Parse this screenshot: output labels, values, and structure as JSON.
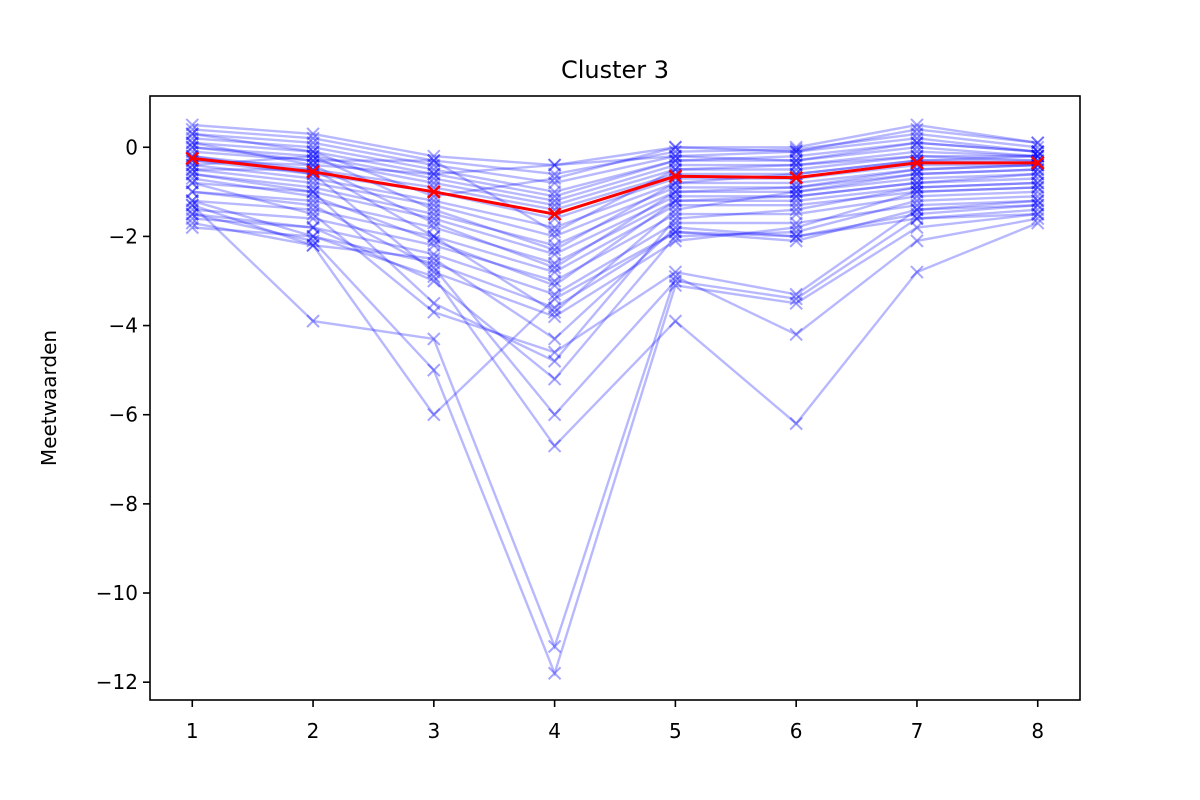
{
  "chart_data": {
    "type": "line",
    "title": "Cluster 3",
    "xlabel": "",
    "ylabel": "Meetwaarden",
    "x": [
      1,
      2,
      3,
      4,
      5,
      6,
      7,
      8
    ],
    "xticks": [
      "1",
      "2",
      "3",
      "4",
      "5",
      "6",
      "7",
      "8"
    ],
    "yticks": [
      "0",
      "−2",
      "−4",
      "−6",
      "−8",
      "−10",
      "−12"
    ],
    "ytick_values": [
      0,
      -2,
      -4,
      -6,
      -8,
      -10,
      -12
    ],
    "xlim": [
      0.65,
      8.35
    ],
    "ylim": [
      -12.4,
      1.15
    ],
    "grid": false,
    "colors": {
      "members": "#0000ff",
      "mean": "#ff0000"
    },
    "mean_series": {
      "name": "mean",
      "values": [
        -0.25,
        -0.55,
        -1.0,
        -1.5,
        -0.65,
        -0.68,
        -0.35,
        -0.35
      ]
    },
    "member_series": [
      [
        0.5,
        0.3,
        -0.2,
        -0.4,
        0.0,
        0.0,
        0.5,
        0.1
      ],
      [
        0.4,
        0.2,
        -0.3,
        -0.6,
        -0.1,
        -0.05,
        0.3,
        0.0
      ],
      [
        0.3,
        0.1,
        -0.4,
        -0.8,
        -0.2,
        -0.1,
        0.2,
        -0.1
      ],
      [
        0.2,
        0.0,
        -0.5,
        -1.0,
        -0.3,
        -0.2,
        0.1,
        -0.1
      ],
      [
        0.1,
        -0.1,
        -0.6,
        -1.1,
        -0.3,
        -0.3,
        0.0,
        -0.2
      ],
      [
        0.0,
        -0.2,
        -0.7,
        -1.2,
        -0.4,
        -0.4,
        -0.1,
        -0.2
      ],
      [
        -0.1,
        -0.3,
        -0.8,
        -1.3,
        -0.5,
        -0.5,
        -0.2,
        -0.3
      ],
      [
        -0.2,
        -0.5,
        -0.9,
        -1.4,
        -0.6,
        -0.6,
        -0.3,
        -0.3
      ],
      [
        -0.3,
        -0.6,
        -1.0,
        -1.6,
        -0.7,
        -0.7,
        -0.4,
        -0.4
      ],
      [
        -0.4,
        -0.7,
        -1.2,
        -1.8,
        -0.8,
        -0.8,
        -0.5,
        -0.4
      ],
      [
        -0.5,
        -0.8,
        -1.3,
        -2.0,
        -0.9,
        -0.9,
        -0.6,
        -0.5
      ],
      [
        -0.6,
        -0.9,
        -1.5,
        -2.2,
        -1.0,
        -1.0,
        -0.7,
        -0.6
      ],
      [
        -0.8,
        -1.0,
        -1.6,
        -2.4,
        -1.1,
        -1.1,
        -0.8,
        -0.7
      ],
      [
        -1.0,
        -1.2,
        -1.8,
        -2.6,
        -1.2,
        -1.2,
        -0.9,
        -0.8
      ],
      [
        -1.2,
        -1.4,
        -2.0,
        -2.8,
        -1.3,
        -1.3,
        -1.0,
        -0.9
      ],
      [
        -1.4,
        -1.6,
        -2.2,
        -3.0,
        -1.5,
        -1.5,
        -1.1,
        -1.0
      ],
      [
        -1.6,
        -1.8,
        -2.4,
        -3.3,
        -1.7,
        -1.7,
        -1.3,
        -1.2
      ],
      [
        -1.8,
        -2.0,
        -2.6,
        -3.6,
        -1.9,
        -2.0,
        -1.6,
        -1.5
      ],
      [
        -0.3,
        -0.4,
        -0.6,
        -0.4,
        -0.2,
        -0.3,
        0.1,
        -0.1
      ],
      [
        0.0,
        -0.3,
        -0.3,
        -1.9,
        -0.5,
        -0.4,
        -0.2,
        -0.2
      ],
      [
        -0.5,
        -0.5,
        -2.0,
        -3.7,
        -1.4,
        -1.0,
        -0.6,
        -0.5
      ],
      [
        -0.2,
        -0.6,
        -2.8,
        -3.8,
        -2.1,
        -1.8,
        -1.0,
        -0.9
      ],
      [
        -1.3,
        -2.2,
        -2.5,
        -4.3,
        -1.8,
        -2.0,
        -1.5,
        -1.3
      ],
      [
        -0.6,
        -1.0,
        -3.5,
        -4.8,
        -1.6,
        -1.4,
        -0.9,
        -0.8
      ],
      [
        -1.5,
        -1.8,
        -3.0,
        -5.2,
        -2.0,
        -1.9,
        -1.2,
        -1.1
      ],
      [
        -0.8,
        -1.5,
        -3.7,
        -4.6,
        -2.8,
        -3.3,
        -1.4,
        -1.2
      ],
      [
        -1.0,
        -1.3,
        -2.7,
        -6.0,
        -3.0,
        -3.4,
        -1.6,
        -1.4
      ],
      [
        -1.2,
        -2.0,
        -2.9,
        -6.7,
        -3.9,
        -6.2,
        -2.8,
        -1.7
      ],
      [
        -1.3,
        -3.9,
        -4.3,
        -11.2,
        -2.9,
        -4.2,
        -2.1,
        -1.6
      ],
      [
        -1.5,
        -2.1,
        -5.0,
        -11.8,
        -3.1,
        -3.5,
        -1.8,
        -1.5
      ],
      [
        -1.7,
        -2.2,
        -6.0,
        -3.4,
        -1.9,
        -2.1,
        -1.4,
        -1.3
      ],
      [
        0.3,
        -0.1,
        -1.1,
        -0.7,
        0.0,
        -0.1,
        0.4,
        0.1
      ],
      [
        -0.4,
        -0.2,
        -1.4,
        -2.3,
        -0.8,
        -0.6,
        -0.3,
        -0.2
      ],
      [
        -0.7,
        -1.1,
        -2.1,
        -3.1,
        -1.2,
        -1.1,
        -0.8,
        -0.6
      ],
      [
        0.1,
        -0.4,
        -1.7,
        -2.7,
        -1.0,
        -0.9,
        -0.5,
        -0.4
      ]
    ]
  }
}
